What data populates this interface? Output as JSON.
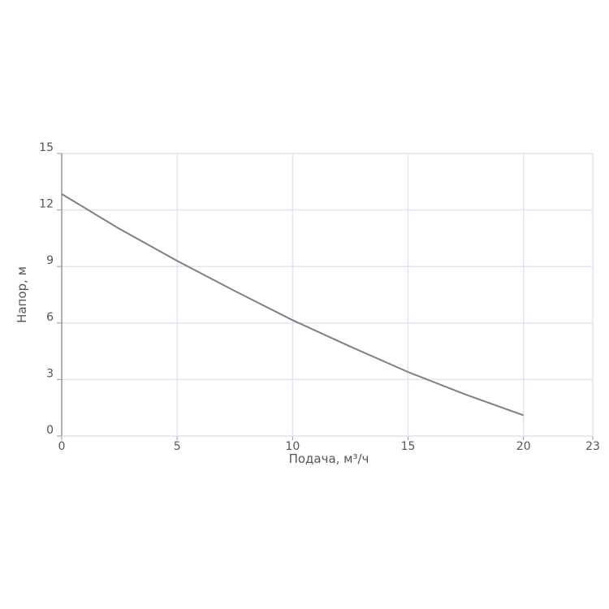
{
  "chart_data": {
    "type": "line",
    "x_label": "Подача, м³/ч",
    "y_label": "Напор, м",
    "x": [
      0,
      2.5,
      5,
      7.5,
      10,
      12.5,
      15,
      17.5,
      20
    ],
    "values": [
      12.85,
      11.0,
      9.3,
      7.7,
      6.15,
      4.75,
      3.4,
      2.2,
      1.1
    ],
    "color": "#808080",
    "xlim": [
      0,
      23
    ],
    "xticks": [
      0,
      5,
      10,
      15,
      20,
      23
    ],
    "ylim": [
      0,
      15
    ],
    "yticks": [
      0,
      3,
      6,
      9,
      12,
      15
    ],
    "grid": true
  }
}
